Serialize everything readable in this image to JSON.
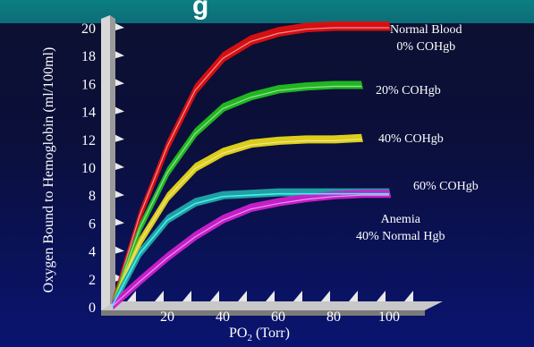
{
  "slide": {
    "title_fragment": "g"
  },
  "chart_data": {
    "type": "line",
    "ylabel": "Oxygen Bound to Hemoglobin (ml/100ml)",
    "xlabel_prefix": "PO",
    "xlabel_sub": "2",
    "xlabel_suffix": " (Torr)",
    "xlim": [
      0,
      110
    ],
    "ylim": [
      0,
      20
    ],
    "x_ticks": [
      20,
      40,
      60,
      80,
      100
    ],
    "y_ticks": [
      0,
      2,
      4,
      6,
      8,
      10,
      12,
      14,
      16,
      18,
      20
    ],
    "series": [
      {
        "label_lines": [
          "Normal Blood",
          "0% COHgb"
        ],
        "color": "#e01010",
        "x": [
          0,
          10,
          20,
          30,
          40,
          50,
          60,
          70,
          80,
          90,
          100
        ],
        "y": [
          0,
          6.5,
          11.5,
          15.5,
          17.8,
          19.0,
          19.6,
          19.9,
          20.0,
          20.0,
          20.0
        ]
      },
      {
        "label_lines": [
          "20% COHgb"
        ],
        "color": "#22c020",
        "x": [
          0,
          10,
          20,
          30,
          40,
          50,
          60,
          70,
          80,
          90
        ],
        "y": [
          0,
          5.6,
          9.6,
          12.4,
          14.2,
          15.0,
          15.5,
          15.7,
          15.8,
          15.8
        ]
      },
      {
        "label_lines": [
          "40% COHgb"
        ],
        "color": "#e8d818",
        "x": [
          0,
          10,
          20,
          30,
          40,
          50,
          60,
          70,
          80,
          90
        ],
        "y": [
          0,
          4.6,
          7.8,
          9.9,
          11.0,
          11.6,
          11.8,
          11.9,
          11.9,
          12.0
        ]
      },
      {
        "label_lines": [
          "60% COHgb"
        ],
        "color": "#23a8a8",
        "x": [
          0,
          10,
          20,
          30,
          40,
          50,
          60,
          70,
          80,
          90,
          100
        ],
        "y": [
          0,
          3.8,
          6.2,
          7.4,
          7.9,
          8.0,
          8.1,
          8.1,
          8.1,
          8.1,
          8.1
        ]
      },
      {
        "label_lines": [
          "Anemia",
          "40% Normal Hgb"
        ],
        "color": "#d020d0",
        "x": [
          0,
          10,
          20,
          30,
          40,
          50,
          60,
          70,
          80,
          90,
          100
        ],
        "y": [
          0,
          1.8,
          3.5,
          5.0,
          6.2,
          7.0,
          7.4,
          7.7,
          7.9,
          8.0,
          8.0
        ]
      }
    ],
    "grid": false,
    "background": "#0b0f3a"
  }
}
